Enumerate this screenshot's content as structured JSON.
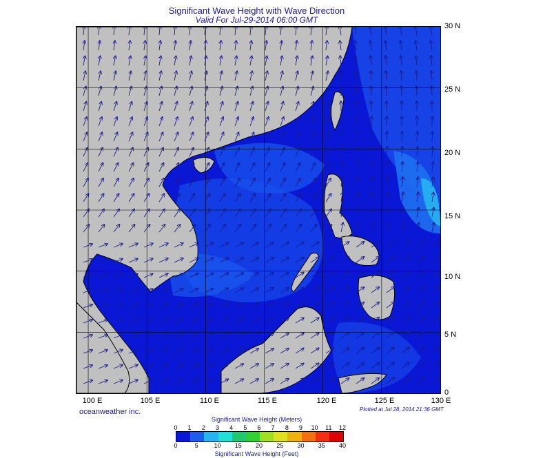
{
  "header": {
    "title": "Significant Wave Height with Wave Direction",
    "subtitle": "Valid For Jul-29-2014 06:00 GMT"
  },
  "map": {
    "lat_labels": [
      "30 N",
      "25 N",
      "20 N",
      "15 N",
      "10 N",
      "5 N",
      "0"
    ],
    "lon_labels": [
      "100 E",
      "105 E",
      "110 E",
      "115 E",
      "120 E",
      "125 E",
      "130 E"
    ],
    "extent": {
      "lon": [
        99,
        130
      ],
      "lat": [
        0,
        30
      ]
    },
    "colors": {
      "land": "#c0c0c0",
      "coast": "#000000",
      "grid": "#000000",
      "arrow": "#1a1a8c",
      "calm": "#0a18d6"
    }
  },
  "footer": {
    "credit": "oceanweather inc.",
    "plotted": "Plotted at Jul 28, 2014 21:36 GMT"
  },
  "legend": {
    "title_meters": "Significant Wave Height (Meters)",
    "title_feet": "Significant Wave Height (Feet)",
    "meters_ticks": [
      "0",
      "1",
      "2",
      "3",
      "4",
      "5",
      "6",
      "7",
      "8",
      "9",
      "10",
      "11",
      "12"
    ],
    "feet_ticks": [
      "0",
      "5",
      "10",
      "15",
      "20",
      "25",
      "30",
      "35",
      "40"
    ],
    "colors": [
      "#0a18d6",
      "#1e5cf0",
      "#28b4f0",
      "#20e0d8",
      "#20c870",
      "#30d030",
      "#a0e020",
      "#e0e020",
      "#f0b010",
      "#f07010",
      "#f03010",
      "#e00000"
    ]
  }
}
